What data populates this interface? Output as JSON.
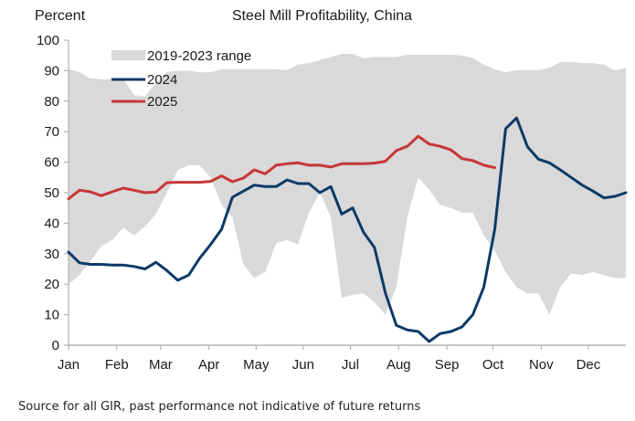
{
  "header": {
    "y_unit": "Percent",
    "title": "Steel Mill Profitability, China"
  },
  "footer": {
    "source": "Source for all GIR, past performance not indicative of future returns"
  },
  "colors": {
    "range_fill": "#d9d9d9",
    "series_2024": "#0c3a66",
    "series_2025": "#c83737",
    "axis": "#a6a6a6"
  },
  "chart_data": {
    "type": "line",
    "title": "Steel Mill Profitability, China",
    "xlabel": "",
    "ylabel": "Percent",
    "ylim": [
      0,
      100
    ],
    "yticks": [
      0,
      10,
      20,
      30,
      40,
      50,
      60,
      70,
      80,
      90,
      100
    ],
    "x_unit": "week of year (0-51)",
    "xlim": [
      0,
      52
    ],
    "xticks": [
      {
        "label": "Jan",
        "week": 0
      },
      {
        "label": "Feb",
        "week": 4.5
      },
      {
        "label": "Mar",
        "week": 8.6
      },
      {
        "label": "Apr",
        "week": 13.1
      },
      {
        "label": "May",
        "week": 17.5
      },
      {
        "label": "Jun",
        "week": 21.9
      },
      {
        "label": "Jul",
        "week": 26.3
      },
      {
        "label": "Aug",
        "week": 30.8
      },
      {
        "label": "Sep",
        "week": 35.3
      },
      {
        "label": "Oct",
        "week": 39.6
      },
      {
        "label": "Nov",
        "week": 44.1
      },
      {
        "label": "Dec",
        "week": 48.5
      }
    ],
    "grid": false,
    "legend_position": "top-left",
    "legend": [
      "2019-2023 range",
      "2024",
      "2025"
    ],
    "range_band": {
      "name": "2019-2023 range",
      "upper": [
        90.5,
        89.5,
        87.5,
        87.2,
        87.2,
        87.2,
        82,
        81.5,
        86,
        89.5,
        90,
        90,
        89.5,
        89.5,
        90.5,
        90.5,
        90.5,
        90.5,
        90.5,
        90.5,
        90.2,
        92,
        92.5,
        93.5,
        94.5,
        95.5,
        95.5,
        94,
        94.5,
        94.5,
        94.5,
        95.2,
        95.2,
        95.2,
        95.2,
        95.2,
        95,
        94.2,
        92,
        90.5,
        89.5,
        90.2,
        90.2,
        90.2,
        91,
        92.8,
        92.8,
        92.5,
        92.5,
        92,
        90,
        91
      ],
      "lower": [
        20,
        23,
        27.5,
        32.5,
        34.5,
        38.5,
        36,
        39,
        43,
        50,
        57.5,
        59,
        59,
        55,
        46,
        42,
        26.5,
        22,
        24,
        33.5,
        34.5,
        33,
        43.5,
        50,
        42,
        15.5,
        16.5,
        17,
        14,
        10,
        19,
        42,
        55,
        51,
        46,
        45,
        43.5,
        43.5,
        36,
        31,
        24,
        19,
        17,
        17,
        10,
        19,
        23.5,
        23,
        24,
        23,
        22,
        22
      ]
    },
    "series": [
      {
        "name": "2024",
        "values": [
          30.5,
          27,
          26.5,
          26.5,
          26.3,
          26.3,
          25.8,
          25,
          27.2,
          24.5,
          21.3,
          23,
          28.5,
          33,
          38,
          48.5,
          50.5,
          52.5,
          52,
          52,
          54.2,
          53,
          53,
          50,
          52,
          43,
          45,
          37,
          32,
          17,
          6.5,
          5,
          4.5,
          1.2,
          3.8,
          4.5,
          6,
          10,
          19,
          38,
          71,
          74.5,
          65,
          61,
          59.8,
          57.5,
          55,
          52.5,
          50.5,
          48.3,
          48.8,
          50
        ]
      },
      {
        "name": "2025",
        "values": [
          48,
          50.8,
          50.3,
          49,
          50.3,
          51.5,
          50.8,
          50,
          50.2,
          53.3,
          53.4,
          53.4,
          53.4,
          53.7,
          55.5,
          53.6,
          54.8,
          57.5,
          56.2,
          59,
          59.5,
          59.8,
          59,
          59,
          58.4,
          59.5,
          59.5,
          59.5,
          59.7,
          60.3,
          63.8,
          65.2,
          68.5,
          66,
          65.2,
          64,
          61.2,
          60.5,
          59,
          58.2
        ]
      }
    ]
  }
}
